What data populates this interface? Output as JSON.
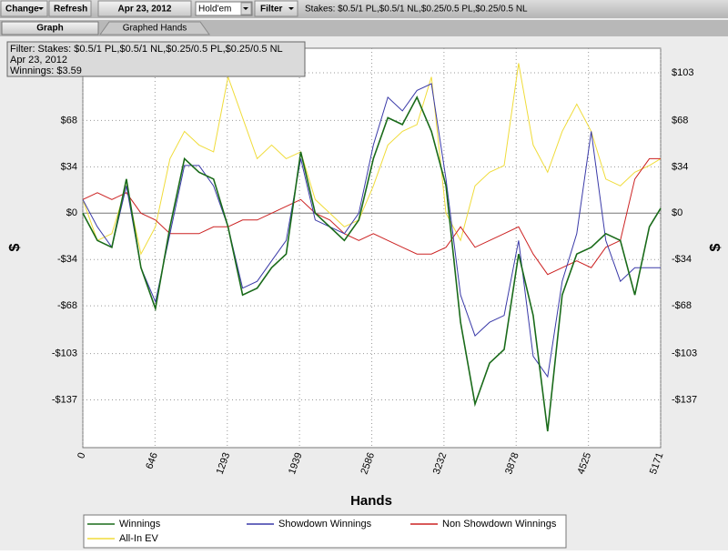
{
  "toolbar": {
    "change": "Change",
    "refresh": "Refresh",
    "date": "Apr 23, 2012",
    "game": "Hold'em",
    "filter": "Filter",
    "stakes": "Stakes: $0.5/1 PL,$0.5/1 NL,$0.25/0.5 PL,$0.25/0.5 NL"
  },
  "tabs": [
    "Graph",
    "Graphed Hands"
  ],
  "info_box": [
    "Filter: Stakes: $0.5/1 PL,$0.5/1 NL,$0.25/0.5 PL,$0.25/0.5 NL",
    "Apr 23, 2012",
    "Winnings: $3.59"
  ],
  "chart_data": {
    "type": "line",
    "x_label": "Hands",
    "y_label": "$",
    "grid": true,
    "xlim": [
      0,
      5171
    ],
    "ylim": [
      -172,
      121
    ],
    "xticks": [
      0,
      646,
      1293,
      1939,
      2586,
      3232,
      3878,
      4525,
      5171
    ],
    "yticks": [
      {
        "value": -137,
        "label": "-$137"
      },
      {
        "value": -103,
        "label": "-$103"
      },
      {
        "value": -68,
        "label": "-$68"
      },
      {
        "value": -34,
        "label": "-$34"
      },
      {
        "value": 0,
        "label": "$0"
      },
      {
        "value": 34,
        "label": "$34"
      },
      {
        "value": 68,
        "label": "$68"
      },
      {
        "value": 103,
        "label": "$103"
      }
    ],
    "x": [
      0,
      130,
      260,
      390,
      520,
      650,
      780,
      910,
      1040,
      1170,
      1300,
      1430,
      1560,
      1690,
      1820,
      1950,
      2080,
      2210,
      2340,
      2470,
      2600,
      2730,
      2860,
      2990,
      3120,
      3250,
      3380,
      3510,
      3640,
      3770,
      3900,
      4030,
      4160,
      4290,
      4420,
      4550,
      4680,
      4810,
      4940,
      5070,
      5171
    ],
    "series": [
      {
        "name": "Winnings",
        "color": "#1a6b1a",
        "values": [
          0,
          -20,
          -25,
          25,
          -40,
          -70,
          -10,
          40,
          30,
          25,
          -10,
          -60,
          -55,
          -40,
          -30,
          45,
          0,
          -10,
          -20,
          -5,
          40,
          70,
          65,
          85,
          60,
          20,
          -80,
          -140,
          -110,
          -100,
          -30,
          -75,
          -160,
          -60,
          -30,
          -25,
          -15,
          -20,
          -60,
          -10,
          3.59
        ]
      },
      {
        "name": "Showdown Winnings",
        "color": "#3a3aa8",
        "values": [
          10,
          -10,
          -25,
          20,
          -40,
          -65,
          -15,
          35,
          35,
          20,
          -10,
          -55,
          -50,
          -35,
          -20,
          40,
          -5,
          -10,
          -15,
          0,
          50,
          85,
          75,
          90,
          95,
          25,
          -60,
          -90,
          -80,
          -75,
          -20,
          -105,
          -120,
          -50,
          -15,
          60,
          -20,
          -50,
          -40,
          -40,
          -40
        ]
      },
      {
        "name": "Non Showdown Winnings",
        "color": "#cc2222",
        "values": [
          10,
          15,
          10,
          15,
          0,
          -5,
          -15,
          -15,
          -15,
          -10,
          -10,
          -5,
          -5,
          0,
          5,
          10,
          0,
          -5,
          -15,
          -20,
          -15,
          -20,
          -25,
          -30,
          -30,
          -25,
          -10,
          -25,
          -20,
          -15,
          -10,
          -30,
          -45,
          -40,
          -35,
          -40,
          -25,
          -20,
          25,
          40,
          40
        ]
      },
      {
        "name": "All-In EV",
        "color": "#f0dc3a",
        "values": [
          10,
          -20,
          -15,
          20,
          -30,
          -10,
          40,
          60,
          50,
          45,
          100,
          70,
          40,
          50,
          40,
          45,
          10,
          0,
          -10,
          -5,
          20,
          50,
          60,
          65,
          100,
          0,
          -20,
          20,
          30,
          35,
          110,
          50,
          30,
          60,
          80,
          60,
          25,
          20,
          30,
          35,
          40
        ]
      }
    ]
  }
}
